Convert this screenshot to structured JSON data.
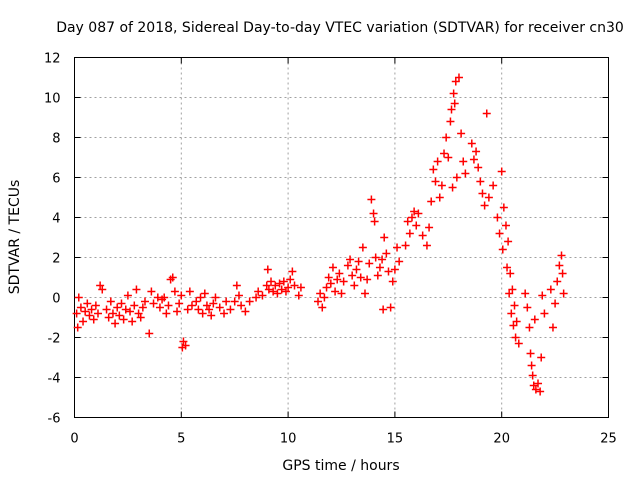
{
  "chart_data": {
    "type": "scatter",
    "title": "Day 087 of 2018, Sidereal Day-to-day VTEC variation (SDTVAR) for receiver cn30",
    "xlabel": "GPS time / hours",
    "ylabel": "SDTVAR / TECUs",
    "xlim": [
      0,
      25
    ],
    "ylim": [
      -6,
      12
    ],
    "xticks": [
      "0",
      "5",
      "10",
      "15",
      "20",
      "25"
    ],
    "yticks": [
      "-6",
      "-4",
      "-2",
      "0",
      "2",
      "4",
      "6",
      "8",
      "10",
      "12"
    ],
    "grid": true,
    "marker": "+",
    "color": "#ff0000",
    "series": [
      {
        "name": "SDTVAR",
        "points": [
          [
            0.1,
            -0.8
          ],
          [
            0.15,
            -1.5
          ],
          [
            0.2,
            0.0
          ],
          [
            0.3,
            -0.5
          ],
          [
            0.4,
            -1.2
          ],
          [
            0.5,
            -0.7
          ],
          [
            0.6,
            -0.3
          ],
          [
            0.7,
            -0.9
          ],
          [
            0.8,
            -0.6
          ],
          [
            0.9,
            -1.1
          ],
          [
            1.0,
            -0.4
          ],
          [
            1.1,
            -0.8
          ],
          [
            1.2,
            0.6
          ],
          [
            1.3,
            0.4
          ],
          [
            1.5,
            -0.6
          ],
          [
            1.6,
            -1.0
          ],
          [
            1.7,
            -0.2
          ],
          [
            1.8,
            -0.8
          ],
          [
            1.9,
            -1.3
          ],
          [
            2.0,
            -0.5
          ],
          [
            2.1,
            -0.9
          ],
          [
            2.2,
            -0.3
          ],
          [
            2.3,
            -1.1
          ],
          [
            2.4,
            -0.6
          ],
          [
            2.5,
            0.1
          ],
          [
            2.6,
            -0.7
          ],
          [
            2.7,
            -1.2
          ],
          [
            2.8,
            -0.4
          ],
          [
            2.9,
            0.4
          ],
          [
            3.0,
            -0.8
          ],
          [
            3.1,
            -1.0
          ],
          [
            3.2,
            -0.5
          ],
          [
            3.3,
            -0.2
          ],
          [
            3.5,
            -1.8
          ],
          [
            3.6,
            0.3
          ],
          [
            3.7,
            -0.3
          ],
          [
            3.9,
            0.0
          ],
          [
            4.0,
            -0.5
          ],
          [
            4.1,
            -0.1
          ],
          [
            4.2,
            0.0
          ],
          [
            4.3,
            -0.8
          ],
          [
            4.4,
            -0.4
          ],
          [
            4.5,
            0.9
          ],
          [
            4.6,
            1.0
          ],
          [
            4.7,
            0.3
          ],
          [
            4.8,
            -0.7
          ],
          [
            4.9,
            -0.3
          ],
          [
            5.0,
            0.1
          ],
          [
            5.05,
            -2.5
          ],
          [
            5.1,
            -2.2
          ],
          [
            5.2,
            -2.4
          ],
          [
            5.3,
            -0.6
          ],
          [
            5.4,
            0.3
          ],
          [
            5.5,
            -0.4
          ],
          [
            5.7,
            -0.2
          ],
          [
            5.8,
            -0.6
          ],
          [
            5.9,
            0.0
          ],
          [
            6.0,
            -0.8
          ],
          [
            6.1,
            0.2
          ],
          [
            6.2,
            -0.4
          ],
          [
            6.3,
            -0.6
          ],
          [
            6.4,
            -0.9
          ],
          [
            6.5,
            -0.3
          ],
          [
            6.6,
            0.0
          ],
          [
            6.8,
            -0.5
          ],
          [
            7.0,
            -0.8
          ],
          [
            7.1,
            -0.2
          ],
          [
            7.3,
            -0.6
          ],
          [
            7.5,
            -0.2
          ],
          [
            7.6,
            0.6
          ],
          [
            7.7,
            0.1
          ],
          [
            7.8,
            -0.4
          ],
          [
            8.0,
            -0.7
          ],
          [
            8.2,
            -0.2
          ],
          [
            8.5,
            0.0
          ],
          [
            8.6,
            0.3
          ],
          [
            8.8,
            0.1
          ],
          [
            9.0,
            0.6
          ],
          [
            9.05,
            1.4
          ],
          [
            9.1,
            0.4
          ],
          [
            9.2,
            0.8
          ],
          [
            9.3,
            0.3
          ],
          [
            9.4,
            0.6
          ],
          [
            9.5,
            0.2
          ],
          [
            9.6,
            0.7
          ],
          [
            9.7,
            0.4
          ],
          [
            9.8,
            0.8
          ],
          [
            9.9,
            0.3
          ],
          [
            10.0,
            0.5
          ],
          [
            10.1,
            0.9
          ],
          [
            10.2,
            1.3
          ],
          [
            10.3,
            0.6
          ],
          [
            10.5,
            0.1
          ],
          [
            10.6,
            0.5
          ],
          [
            11.4,
            -0.2
          ],
          [
            11.5,
            0.2
          ],
          [
            11.6,
            -0.5
          ],
          [
            11.7,
            0.0
          ],
          [
            11.8,
            0.5
          ],
          [
            11.9,
            1.0
          ],
          [
            12.0,
            0.7
          ],
          [
            12.1,
            1.5
          ],
          [
            12.2,
            0.3
          ],
          [
            12.3,
            0.9
          ],
          [
            12.4,
            1.2
          ],
          [
            12.5,
            0.2
          ],
          [
            12.6,
            0.8
          ],
          [
            12.8,
            1.6
          ],
          [
            12.9,
            1.9
          ],
          [
            13.0,
            1.1
          ],
          [
            13.1,
            0.6
          ],
          [
            13.2,
            1.4
          ],
          [
            13.3,
            1.8
          ],
          [
            13.4,
            1.0
          ],
          [
            13.5,
            2.5
          ],
          [
            13.6,
            0.2
          ],
          [
            13.7,
            0.9
          ],
          [
            13.8,
            1.7
          ],
          [
            13.9,
            4.9
          ],
          [
            14.0,
            4.2
          ],
          [
            14.05,
            3.8
          ],
          [
            14.1,
            2.0
          ],
          [
            14.2,
            1.1
          ],
          [
            14.3,
            1.5
          ],
          [
            14.4,
            1.9
          ],
          [
            14.45,
            -0.6
          ],
          [
            14.5,
            3.0
          ],
          [
            14.6,
            2.2
          ],
          [
            14.7,
            1.3
          ],
          [
            14.8,
            -0.5
          ],
          [
            14.9,
            0.8
          ],
          [
            15.0,
            1.4
          ],
          [
            15.1,
            2.5
          ],
          [
            15.2,
            1.8
          ],
          [
            15.5,
            2.6
          ],
          [
            15.6,
            3.8
          ],
          [
            15.7,
            3.2
          ],
          [
            15.8,
            4.0
          ],
          [
            15.9,
            4.3
          ],
          [
            16.0,
            3.6
          ],
          [
            16.1,
            4.2
          ],
          [
            16.3,
            3.1
          ],
          [
            16.5,
            2.6
          ],
          [
            16.6,
            3.5
          ],
          [
            16.7,
            4.8
          ],
          [
            16.8,
            6.4
          ],
          [
            16.9,
            5.8
          ],
          [
            17.0,
            6.8
          ],
          [
            17.1,
            5.0
          ],
          [
            17.2,
            5.6
          ],
          [
            17.3,
            7.2
          ],
          [
            17.4,
            8.0
          ],
          [
            17.5,
            7.0
          ],
          [
            17.6,
            8.8
          ],
          [
            17.65,
            9.4
          ],
          [
            17.7,
            5.5
          ],
          [
            17.75,
            10.2
          ],
          [
            17.8,
            9.7
          ],
          [
            17.85,
            10.8
          ],
          [
            17.9,
            6.0
          ],
          [
            18.0,
            11.0
          ],
          [
            18.1,
            8.2
          ],
          [
            18.2,
            6.8
          ],
          [
            18.3,
            6.2
          ],
          [
            18.6,
            7.7
          ],
          [
            18.7,
            6.9
          ],
          [
            18.8,
            7.3
          ],
          [
            18.9,
            6.5
          ],
          [
            19.0,
            5.8
          ],
          [
            19.1,
            5.2
          ],
          [
            19.2,
            4.6
          ],
          [
            19.3,
            9.2
          ],
          [
            19.4,
            5.0
          ],
          [
            19.6,
            5.6
          ],
          [
            19.8,
            4.0
          ],
          [
            19.9,
            3.2
          ],
          [
            20.0,
            6.3
          ],
          [
            20.05,
            2.4
          ],
          [
            20.1,
            4.5
          ],
          [
            20.2,
            3.6
          ],
          [
            20.25,
            1.5
          ],
          [
            20.3,
            2.8
          ],
          [
            20.35,
            0.2
          ],
          [
            20.4,
            1.2
          ],
          [
            20.45,
            -0.8
          ],
          [
            20.5,
            0.4
          ],
          [
            20.55,
            -1.4
          ],
          [
            20.6,
            -0.4
          ],
          [
            20.65,
            -2.0
          ],
          [
            20.7,
            -1.2
          ],
          [
            20.8,
            -2.3
          ],
          [
            21.1,
            0.2
          ],
          [
            21.2,
            -0.5
          ],
          [
            21.3,
            -1.5
          ],
          [
            21.35,
            -2.8
          ],
          [
            21.4,
            -3.4
          ],
          [
            21.45,
            -3.9
          ],
          [
            21.5,
            -4.4
          ],
          [
            21.55,
            -1.1
          ],
          [
            21.6,
            -4.6
          ],
          [
            21.7,
            -4.3
          ],
          [
            21.8,
            -4.7
          ],
          [
            21.85,
            -3.0
          ],
          [
            21.9,
            0.1
          ],
          [
            22.0,
            -0.8
          ],
          [
            22.3,
            0.4
          ],
          [
            22.4,
            -1.5
          ],
          [
            22.5,
            -0.3
          ],
          [
            22.6,
            0.8
          ],
          [
            22.7,
            1.6
          ],
          [
            22.8,
            2.1
          ],
          [
            22.85,
            1.2
          ],
          [
            22.9,
            0.2
          ]
        ]
      }
    ]
  }
}
